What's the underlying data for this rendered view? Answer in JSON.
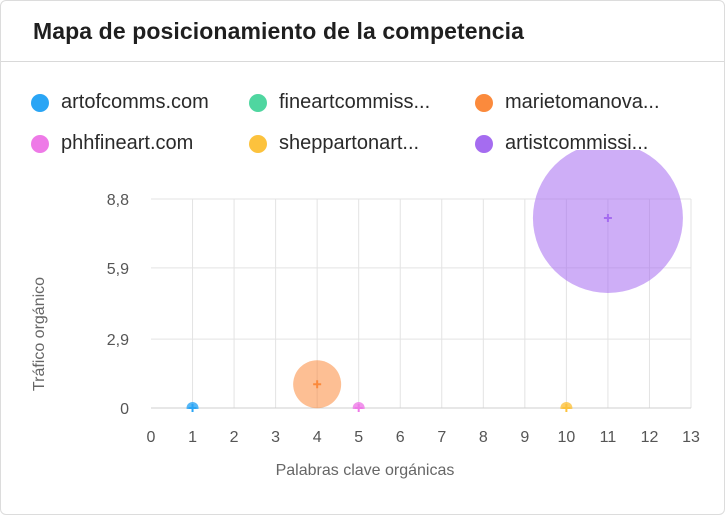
{
  "header": {
    "title": "Mapa de posicionamiento de la competencia"
  },
  "chart_data": {
    "type": "scatter",
    "xlabel": "Palabras clave orgánicas",
    "ylabel": "Tráfico orgánico",
    "xlim": [
      0,
      13
    ],
    "ylim": [
      0,
      8.8
    ],
    "x_ticks": [
      "0",
      "1",
      "2",
      "3",
      "4",
      "5",
      "6",
      "7",
      "8",
      "9",
      "10",
      "11",
      "12",
      "13"
    ],
    "y_ticks": [
      {
        "value": 0,
        "label": "0"
      },
      {
        "value": 2.9,
        "label": "2,9"
      },
      {
        "value": 5.9,
        "label": "5,9"
      },
      {
        "value": 8.8,
        "label": "8,8"
      }
    ],
    "grid": true,
    "legend_position": "top",
    "series": [
      {
        "name": "artofcomms.com",
        "color": "#2aa5f5",
        "x": 1,
        "y": 0,
        "bubble": 0.05
      },
      {
        "name": "fineartcommiss...",
        "color": "#4fd6a0",
        "x": 0,
        "y": 0,
        "bubble": 0
      },
      {
        "name": "marietomanova...",
        "color": "#fb8a3c",
        "x": 4,
        "y": 1.0,
        "bubble": 0.32
      },
      {
        "name": "phhfineart.com",
        "color": "#ee7ae7",
        "x": 5,
        "y": 0,
        "bubble": 0.05
      },
      {
        "name": "sheppartonart...",
        "color": "#fcc23d",
        "x": 10,
        "y": 0,
        "bubble": 0.05
      },
      {
        "name": "artistcommissi...",
        "color": "#a56cf0",
        "x": 11,
        "y": 8.0,
        "bubble": 1
      }
    ]
  }
}
